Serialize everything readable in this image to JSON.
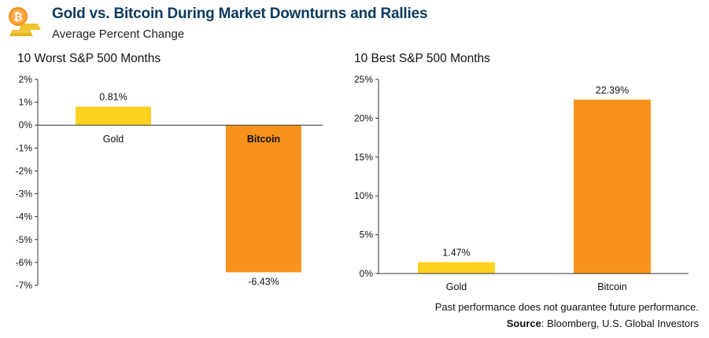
{
  "header": {
    "title": "Gold vs. Bitcoin During Market Downturns and Rallies",
    "subtitle": "Average Percent Change"
  },
  "colors": {
    "gold": "#FFD21F",
    "bitcoin": "#F7931A",
    "title": "#0c3a5e"
  },
  "chart_data": [
    {
      "type": "bar",
      "title": "10 Worst S&P 500 Months",
      "categories": [
        "Gold",
        "Bitcoin"
      ],
      "values": [
        0.81,
        -6.43
      ],
      "data_labels": [
        "0.81%",
        "-6.43%"
      ],
      "ylim": [
        -7,
        2
      ],
      "yticks": [
        2,
        1,
        0,
        -1,
        -2,
        -3,
        -4,
        -5,
        -6,
        -7
      ],
      "ytick_labels": [
        "2%",
        "1%",
        "0%",
        "-1%",
        "-2%",
        "-3%",
        "-4%",
        "-5%",
        "-6%",
        "-7%"
      ],
      "bar_colors": [
        "#FFD21F",
        "#F7931A"
      ],
      "category_label_weight": [
        "normal",
        "bold"
      ]
    },
    {
      "type": "bar",
      "title": "10 Best S&P 500 Months",
      "categories": [
        "Gold",
        "Bitcoin"
      ],
      "values": [
        1.47,
        22.39
      ],
      "data_labels": [
        "1.47%",
        "22.39%"
      ],
      "ylim": [
        0,
        25
      ],
      "yticks": [
        25,
        20,
        15,
        10,
        5,
        0
      ],
      "ytick_labels": [
        "25%",
        "20%",
        "15%",
        "10%",
        "5%",
        "0%"
      ],
      "bar_colors": [
        "#FFD21F",
        "#F7931A"
      ],
      "category_label_weight": [
        "normal",
        "normal"
      ]
    }
  ],
  "footer": {
    "disclaimer": "Past performance does not guarantee future performance.",
    "source_label": "Source",
    "source_text": ": Bloomberg, U.S. Global Investors"
  }
}
